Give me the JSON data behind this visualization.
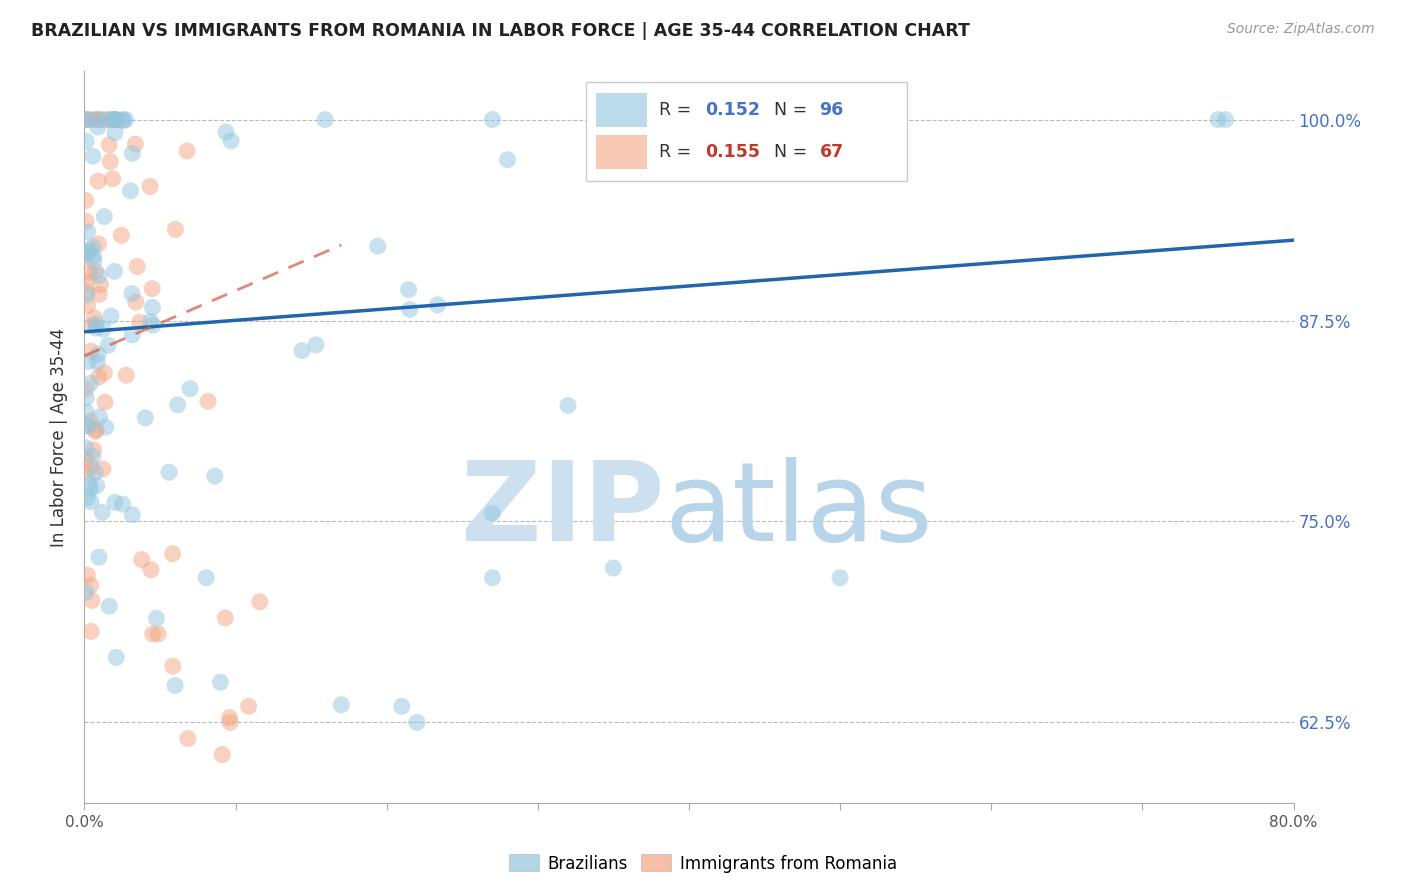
{
  "title": "BRAZILIAN VS IMMIGRANTS FROM ROMANIA IN LABOR FORCE | AGE 35-44 CORRELATION CHART",
  "source": "Source: ZipAtlas.com",
  "ylabel": "In Labor Force | Age 35-44",
  "xlim": [
    0.0,
    0.8
  ],
  "ylim": [
    0.575,
    1.03
  ],
  "ytick_positions": [
    0.625,
    0.75,
    0.875,
    1.0
  ],
  "yticklabels": [
    "62.5%",
    "75.0%",
    "87.5%",
    "100.0%"
  ],
  "legend_blue_R": "0.152",
  "legend_blue_N": "96",
  "legend_pink_R": "0.155",
  "legend_pink_N": "67",
  "blue_color": "#92c5de",
  "pink_color": "#f4a582",
  "blue_line_color": "#2166ac",
  "pink_line_color": "#d6604d",
  "watermark_zip_color": "#cde0f0",
  "watermark_atlas_color": "#b8d4e8",
  "grid_color": "#bbbbbb",
  "blue_line_x0": 0.0,
  "blue_line_y0": 0.868,
  "blue_line_x1": 0.8,
  "blue_line_y1": 0.925,
  "pink_line_x0": 0.0,
  "pink_line_y0": 0.853,
  "pink_line_x1": 0.17,
  "pink_line_y1": 0.922
}
